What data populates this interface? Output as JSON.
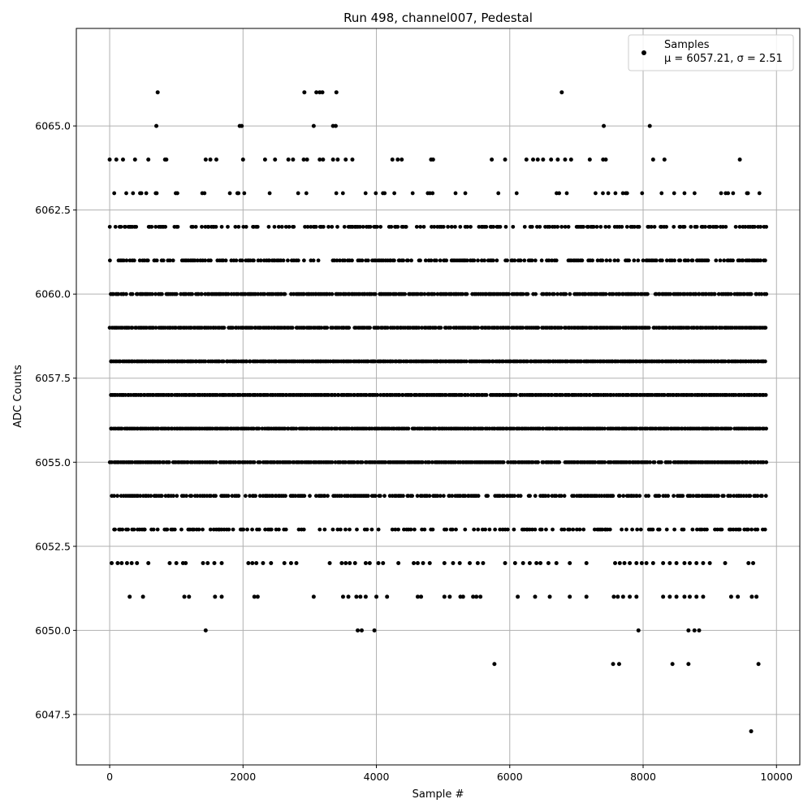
{
  "chart_data": {
    "type": "scatter",
    "title": "Run 498, channel007, Pedestal",
    "xlabel": "Sample #",
    "ylabel": "ADC Counts",
    "xlim": [
      -500,
      10350
    ],
    "ylim": [
      6046.0,
      6067.9
    ],
    "grid": true,
    "legend_placement": "top-right",
    "marker_color": "#000000",
    "x_ticks": [
      0,
      2000,
      4000,
      6000,
      8000,
      10000
    ],
    "x_tick_labels": [
      "0",
      "2000",
      "4000",
      "6000",
      "8000",
      "10000"
    ],
    "y_ticks": [
      6047.5,
      6050.0,
      6052.5,
      6055.0,
      6057.5,
      6060.0,
      6062.5,
      6065.0
    ],
    "y_tick_labels": [
      "6047.5",
      "6050.0",
      "6052.5",
      "6055.0",
      "6057.5",
      "6060.0",
      "6062.5",
      "6065.0"
    ],
    "legend": {
      "series_name": "Samples",
      "stats_mu": "μ = 6057.21",
      "stats_sigma": "σ = 2.51"
    },
    "sample_range": [
      0,
      9830
    ],
    "mean": 6057.21,
    "sigma": 2.51,
    "series": [
      {
        "name": "Samples",
        "points": [
          [
            0,
            6064
          ],
          [
            100,
            6064
          ],
          [
            200,
            6064
          ],
          [
            380,
            6064
          ],
          [
            580,
            6064
          ],
          [
            830,
            6064
          ],
          [
            850,
            6064
          ],
          [
            1440,
            6064
          ],
          [
            1510,
            6064
          ],
          [
            1600,
            6064
          ],
          [
            2000,
            6064
          ],
          [
            2330,
            6064
          ],
          [
            2480,
            6064
          ],
          [
            2680,
            6064
          ],
          [
            2750,
            6064
          ],
          [
            2910,
            6064
          ],
          [
            2960,
            6064
          ],
          [
            3150,
            6064
          ],
          [
            3200,
            6064
          ],
          [
            3350,
            6064
          ],
          [
            3420,
            6064
          ],
          [
            3540,
            6064
          ],
          [
            3640,
            6064
          ],
          [
            4240,
            6064
          ],
          [
            4320,
            6064
          ],
          [
            4380,
            6064
          ],
          [
            4820,
            6064
          ],
          [
            4850,
            6064
          ],
          [
            5730,
            6064
          ],
          [
            5930,
            6064
          ],
          [
            6250,
            6064
          ],
          [
            6350,
            6064
          ],
          [
            6420,
            6064
          ],
          [
            6500,
            6064
          ],
          [
            6620,
            6064
          ],
          [
            6720,
            6064
          ],
          [
            6830,
            6064
          ],
          [
            6920,
            6064
          ],
          [
            7200,
            6064
          ],
          [
            7400,
            6064
          ],
          [
            7440,
            6064
          ],
          [
            8150,
            6064
          ],
          [
            8320,
            6064
          ],
          [
            9450,
            6064
          ],
          [
            700,
            6065
          ],
          [
            1950,
            6065
          ],
          [
            1980,
            6065
          ],
          [
            3060,
            6065
          ],
          [
            3350,
            6065
          ],
          [
            3390,
            6065
          ],
          [
            7410,
            6065
          ],
          [
            8100,
            6065
          ],
          [
            720,
            6066
          ],
          [
            2920,
            6066
          ],
          [
            3100,
            6066
          ],
          [
            3150,
            6066
          ],
          [
            3190,
            6066
          ],
          [
            3400,
            6066
          ],
          [
            6780,
            6066
          ],
          [
            9620,
            6047
          ],
          [
            5770,
            6049
          ],
          [
            7550,
            6049
          ],
          [
            7640,
            6049
          ],
          [
            8440,
            6049
          ],
          [
            8680,
            6049
          ],
          [
            9730,
            6049
          ],
          [
            1440,
            6050
          ],
          [
            3720,
            6050
          ],
          [
            3780,
            6050
          ],
          [
            3970,
            6050
          ],
          [
            7930,
            6050
          ],
          [
            8680,
            6050
          ],
          [
            8770,
            6050
          ],
          [
            8840,
            6050
          ],
          [
            300,
            6051
          ],
          [
            500,
            6051
          ],
          [
            1120,
            6051
          ],
          [
            1190,
            6051
          ],
          [
            1580,
            6051
          ],
          [
            1680,
            6051
          ],
          [
            2170,
            6051
          ],
          [
            2220,
            6051
          ],
          [
            3060,
            6051
          ],
          [
            3500,
            6051
          ],
          [
            3580,
            6051
          ],
          [
            3700,
            6051
          ],
          [
            3760,
            6051
          ],
          [
            3840,
            6051
          ],
          [
            4000,
            6051
          ],
          [
            4160,
            6051
          ],
          [
            4620,
            6051
          ],
          [
            4670,
            6051
          ],
          [
            5020,
            6051
          ],
          [
            5100,
            6051
          ],
          [
            5260,
            6051
          ],
          [
            5300,
            6051
          ],
          [
            5450,
            6051
          ],
          [
            5500,
            6051
          ],
          [
            5560,
            6051
          ],
          [
            6120,
            6051
          ],
          [
            6380,
            6051
          ],
          [
            6600,
            6051
          ],
          [
            6900,
            6051
          ],
          [
            7150,
            6051
          ],
          [
            7560,
            6051
          ],
          [
            7620,
            6051
          ],
          [
            7700,
            6051
          ],
          [
            7800,
            6051
          ],
          [
            7900,
            6051
          ],
          [
            8300,
            6051
          ],
          [
            8400,
            6051
          ],
          [
            8500,
            6051
          ],
          [
            8620,
            6051
          ],
          [
            8700,
            6051
          ],
          [
            8800,
            6051
          ],
          [
            8900,
            6051
          ],
          [
            9320,
            6051
          ],
          [
            9420,
            6051
          ],
          [
            9630,
            6051
          ],
          [
            9700,
            6051
          ],
          [
            30,
            6052
          ],
          [
            120,
            6052
          ],
          [
            180,
            6052
          ],
          [
            260,
            6052
          ],
          [
            330,
            6052
          ],
          [
            410,
            6052
          ],
          [
            580,
            6052
          ],
          [
            900,
            6052
          ],
          [
            1000,
            6052
          ],
          [
            1100,
            6052
          ],
          [
            1140,
            6052
          ],
          [
            1400,
            6052
          ],
          [
            1470,
            6052
          ],
          [
            1570,
            6052
          ],
          [
            1680,
            6052
          ],
          [
            2080,
            6052
          ],
          [
            2140,
            6052
          ],
          [
            2200,
            6052
          ],
          [
            2300,
            6052
          ],
          [
            2420,
            6052
          ],
          [
            2620,
            6052
          ],
          [
            2720,
            6052
          ],
          [
            2800,
            6052
          ],
          [
            3300,
            6052
          ],
          [
            3480,
            6052
          ],
          [
            3540,
            6052
          ],
          [
            3600,
            6052
          ],
          [
            3680,
            6052
          ],
          [
            3840,
            6052
          ],
          [
            3900,
            6052
          ],
          [
            4030,
            6052
          ],
          [
            4100,
            6052
          ],
          [
            4330,
            6052
          ],
          [
            4560,
            6052
          ],
          [
            4620,
            6052
          ],
          [
            4700,
            6052
          ],
          [
            4800,
            6052
          ],
          [
            5020,
            6052
          ],
          [
            5150,
            6052
          ],
          [
            5250,
            6052
          ],
          [
            5400,
            6052
          ],
          [
            5520,
            6052
          ],
          [
            5600,
            6052
          ],
          [
            5930,
            6052
          ],
          [
            6080,
            6052
          ],
          [
            6200,
            6052
          ],
          [
            6300,
            6052
          ],
          [
            6400,
            6052
          ],
          [
            6460,
            6052
          ],
          [
            6580,
            6052
          ],
          [
            6700,
            6052
          ],
          [
            6900,
            6052
          ],
          [
            7150,
            6052
          ],
          [
            7580,
            6052
          ],
          [
            7650,
            6052
          ],
          [
            7720,
            6052
          ],
          [
            7800,
            6052
          ],
          [
            7900,
            6052
          ],
          [
            7980,
            6052
          ],
          [
            8050,
            6052
          ],
          [
            8150,
            6052
          ],
          [
            8300,
            6052
          ],
          [
            8400,
            6052
          ],
          [
            8500,
            6052
          ],
          [
            8620,
            6052
          ],
          [
            8700,
            6052
          ],
          [
            8800,
            6052
          ],
          [
            8900,
            6052
          ],
          [
            9000,
            6052
          ],
          [
            9230,
            6052
          ],
          [
            9580,
            6052
          ],
          [
            9650,
            6052
          ]
        ]
      }
    ]
  }
}
